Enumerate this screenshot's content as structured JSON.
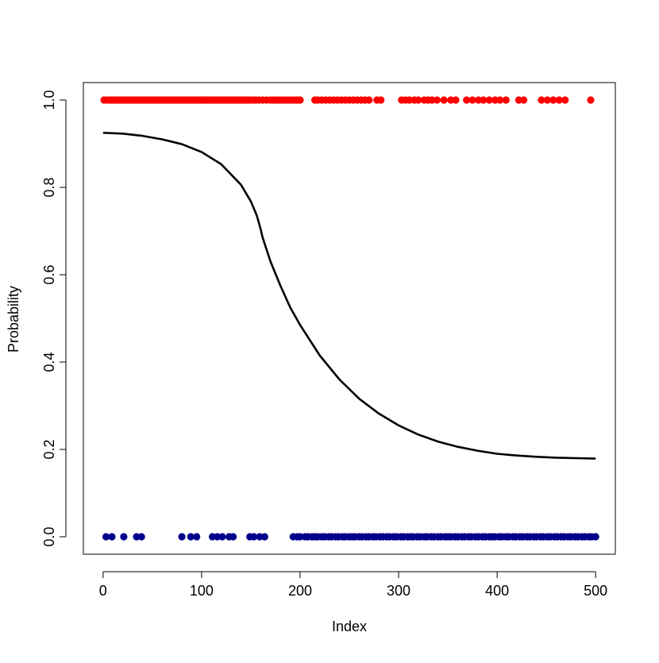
{
  "chart_data": {
    "type": "scatter",
    "xlabel": "Index",
    "ylabel": "Probability",
    "xlim": [
      -20,
      520
    ],
    "ylim": [
      -0.04,
      1.04
    ],
    "x_ticks": [
      0,
      100,
      200,
      300,
      400,
      500
    ],
    "y_ticks": [
      0.0,
      0.2,
      0.4,
      0.6,
      0.8,
      1.0
    ],
    "x_tick_labels": [
      "0",
      "100",
      "200",
      "300",
      "400",
      "500"
    ],
    "y_tick_labels": [
      "0.0",
      "0.2",
      "0.4",
      "0.6",
      "0.8",
      "1.0"
    ],
    "grid": false,
    "legend": "none",
    "colors": {
      "class_1": "#ff0000",
      "class_0": "#00008b",
      "curve": "#000000"
    },
    "series": [
      {
        "type": "scatter",
        "y": 1,
        "color": "#ff0000",
        "x": [
          1,
          4,
          7,
          9,
          11,
          13,
          15,
          17,
          19,
          21,
          23,
          25,
          27,
          29,
          31,
          33,
          35,
          37,
          39,
          41,
          43,
          45,
          47,
          49,
          51,
          53,
          55,
          57,
          59,
          61,
          63,
          65,
          67,
          69,
          71,
          73,
          75,
          77,
          79,
          81,
          83,
          85,
          87,
          89,
          91,
          93,
          95,
          97,
          99,
          101,
          103,
          105,
          107,
          109,
          111,
          113,
          115,
          117,
          119,
          121,
          123,
          125,
          127,
          129,
          131,
          133,
          135,
          137,
          139,
          141,
          143,
          145,
          147,
          149,
          152,
          155,
          158,
          162,
          166,
          170,
          173,
          176,
          179,
          182,
          185,
          188,
          191,
          194,
          197,
          200,
          215,
          218,
          222,
          226,
          230,
          234,
          238,
          242,
          246,
          250,
          254,
          258,
          262,
          266,
          270,
          278,
          282,
          303,
          307,
          311,
          316,
          320,
          326,
          330,
          334,
          339,
          346,
          353,
          358,
          369,
          375,
          381,
          386,
          392,
          398,
          403,
          409,
          422,
          427,
          445,
          451,
          457,
          463,
          469,
          495
        ]
      },
      {
        "type": "scatter",
        "y": 0,
        "color": "#00008b",
        "x": [
          3,
          9,
          21,
          34,
          39,
          80,
          89,
          95,
          111,
          116,
          121,
          128,
          132,
          149,
          153,
          159,
          164,
          193,
          197,
          200,
          205,
          208,
          212,
          215,
          218,
          222,
          225,
          229,
          232,
          236,
          239,
          243,
          246,
          250,
          253,
          256,
          260,
          263,
          267,
          270,
          274,
          277,
          281,
          284,
          288,
          291,
          295,
          298,
          302,
          305,
          309,
          312,
          315,
          319,
          322,
          326,
          329,
          333,
          336,
          340,
          343,
          347,
          350,
          353,
          357,
          360,
          364,
          367,
          371,
          374,
          378,
          381,
          385,
          388,
          392,
          395,
          398,
          402,
          405,
          409,
          412,
          416,
          419,
          423,
          426,
          430,
          433,
          437,
          440,
          444,
          447,
          451,
          454,
          458,
          461,
          465,
          468,
          472,
          475,
          479,
          482,
          486,
          489,
          493,
          496,
          500
        ]
      },
      {
        "type": "line",
        "color": "#000000",
        "x": [
          0,
          20,
          40,
          60,
          80,
          100,
          120,
          140,
          150,
          156,
          160,
          162,
          170,
          180,
          190,
          200,
          220,
          240,
          260,
          280,
          300,
          320,
          340,
          360,
          380,
          400,
          420,
          440,
          460,
          480,
          500
        ],
        "y": [
          0.925,
          0.923,
          0.918,
          0.91,
          0.899,
          0.881,
          0.853,
          0.806,
          0.768,
          0.736,
          0.704,
          0.685,
          0.63,
          0.575,
          0.525,
          0.485,
          0.415,
          0.36,
          0.316,
          0.282,
          0.255,
          0.234,
          0.218,
          0.206,
          0.197,
          0.19,
          0.186,
          0.183,
          0.181,
          0.18,
          0.179
        ]
      }
    ]
  }
}
